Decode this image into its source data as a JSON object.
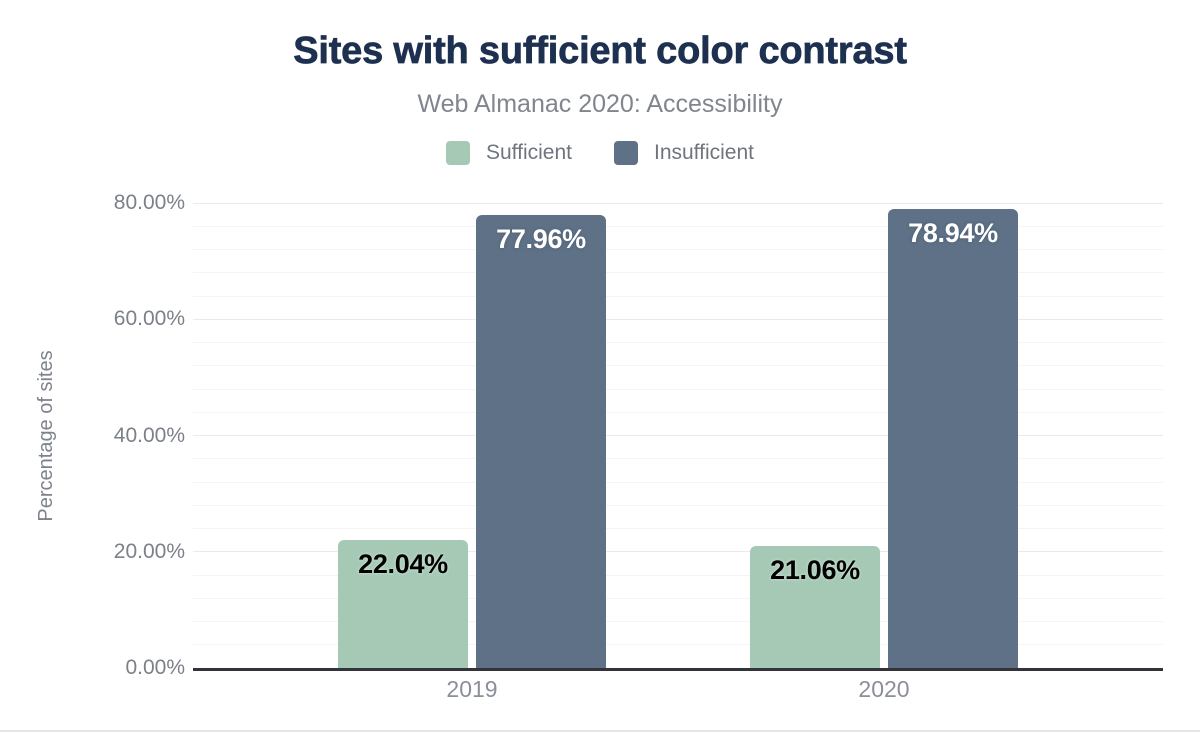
{
  "header": {
    "title": "Sites with sufficient color contrast",
    "subtitle": "Web Almanac 2020: Accessibility"
  },
  "colors": {
    "title_navy": "#1e3050",
    "subtitle_gray": "#80858e",
    "axis_text_gray": "#7b8089",
    "axis_line_dark": "#33343a",
    "sufficient_green": "#a6c9b5",
    "insufficient_blue": "#5e7187"
  },
  "chart_data": {
    "type": "bar",
    "title": "Sites with sufficient color contrast",
    "subtitle": "Web Almanac 2020: Accessibility",
    "categories": [
      "2019",
      "2020"
    ],
    "series": [
      {
        "name": "Sufficient",
        "color": "#a6c9b5",
        "values": [
          22.04,
          21.06
        ],
        "labels": [
          "22.04%",
          "21.06%"
        ],
        "label_style": "dark"
      },
      {
        "name": "Insufficient",
        "color": "#5e7187",
        "values": [
          77.96,
          78.94
        ],
        "labels": [
          "77.96%",
          "78.94%"
        ],
        "label_style": "light"
      }
    ],
    "xlabel": "",
    "ylabel": "Percentage of sites",
    "ylim": [
      0,
      80
    ],
    "yticks": [
      {
        "value": 0,
        "label": "0.00%"
      },
      {
        "value": 20,
        "label": "20.00%"
      },
      {
        "value": 40,
        "label": "40.00%"
      },
      {
        "value": 60,
        "label": "60.00%"
      },
      {
        "value": 80,
        "label": "80.00%"
      }
    ],
    "grid": {
      "horizontal": true,
      "minor_step_pct": 4,
      "major_step_pct": 20
    },
    "legend_position": "top"
  }
}
